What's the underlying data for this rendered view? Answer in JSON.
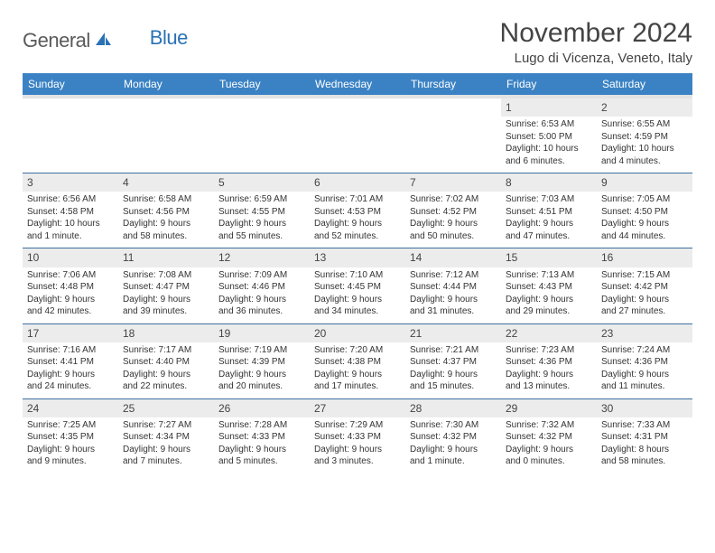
{
  "logo": {
    "word1": "General",
    "word2": "Blue"
  },
  "title": "November 2024",
  "location": "Lugo di Vicenza, Veneto, Italy",
  "colors": {
    "header_bg": "#3b82c4",
    "header_text": "#ffffff",
    "daynum_bg": "#ececec",
    "row_border": "#3b6fa0",
    "logo_gray": "#5a5a5a",
    "logo_blue": "#2a72b5",
    "page_bg": "#ffffff"
  },
  "weekdays": [
    "Sunday",
    "Monday",
    "Tuesday",
    "Wednesday",
    "Thursday",
    "Friday",
    "Saturday"
  ],
  "weeks": [
    [
      null,
      null,
      null,
      null,
      null,
      {
        "n": "1",
        "sr": "Sunrise: 6:53 AM",
        "ss": "Sunset: 5:00 PM",
        "d1": "Daylight: 10 hours",
        "d2": "and 6 minutes."
      },
      {
        "n": "2",
        "sr": "Sunrise: 6:55 AM",
        "ss": "Sunset: 4:59 PM",
        "d1": "Daylight: 10 hours",
        "d2": "and 4 minutes."
      }
    ],
    [
      {
        "n": "3",
        "sr": "Sunrise: 6:56 AM",
        "ss": "Sunset: 4:58 PM",
        "d1": "Daylight: 10 hours",
        "d2": "and 1 minute."
      },
      {
        "n": "4",
        "sr": "Sunrise: 6:58 AM",
        "ss": "Sunset: 4:56 PM",
        "d1": "Daylight: 9 hours",
        "d2": "and 58 minutes."
      },
      {
        "n": "5",
        "sr": "Sunrise: 6:59 AM",
        "ss": "Sunset: 4:55 PM",
        "d1": "Daylight: 9 hours",
        "d2": "and 55 minutes."
      },
      {
        "n": "6",
        "sr": "Sunrise: 7:01 AM",
        "ss": "Sunset: 4:53 PM",
        "d1": "Daylight: 9 hours",
        "d2": "and 52 minutes."
      },
      {
        "n": "7",
        "sr": "Sunrise: 7:02 AM",
        "ss": "Sunset: 4:52 PM",
        "d1": "Daylight: 9 hours",
        "d2": "and 50 minutes."
      },
      {
        "n": "8",
        "sr": "Sunrise: 7:03 AM",
        "ss": "Sunset: 4:51 PM",
        "d1": "Daylight: 9 hours",
        "d2": "and 47 minutes."
      },
      {
        "n": "9",
        "sr": "Sunrise: 7:05 AM",
        "ss": "Sunset: 4:50 PM",
        "d1": "Daylight: 9 hours",
        "d2": "and 44 minutes."
      }
    ],
    [
      {
        "n": "10",
        "sr": "Sunrise: 7:06 AM",
        "ss": "Sunset: 4:48 PM",
        "d1": "Daylight: 9 hours",
        "d2": "and 42 minutes."
      },
      {
        "n": "11",
        "sr": "Sunrise: 7:08 AM",
        "ss": "Sunset: 4:47 PM",
        "d1": "Daylight: 9 hours",
        "d2": "and 39 minutes."
      },
      {
        "n": "12",
        "sr": "Sunrise: 7:09 AM",
        "ss": "Sunset: 4:46 PM",
        "d1": "Daylight: 9 hours",
        "d2": "and 36 minutes."
      },
      {
        "n": "13",
        "sr": "Sunrise: 7:10 AM",
        "ss": "Sunset: 4:45 PM",
        "d1": "Daylight: 9 hours",
        "d2": "and 34 minutes."
      },
      {
        "n": "14",
        "sr": "Sunrise: 7:12 AM",
        "ss": "Sunset: 4:44 PM",
        "d1": "Daylight: 9 hours",
        "d2": "and 31 minutes."
      },
      {
        "n": "15",
        "sr": "Sunrise: 7:13 AM",
        "ss": "Sunset: 4:43 PM",
        "d1": "Daylight: 9 hours",
        "d2": "and 29 minutes."
      },
      {
        "n": "16",
        "sr": "Sunrise: 7:15 AM",
        "ss": "Sunset: 4:42 PM",
        "d1": "Daylight: 9 hours",
        "d2": "and 27 minutes."
      }
    ],
    [
      {
        "n": "17",
        "sr": "Sunrise: 7:16 AM",
        "ss": "Sunset: 4:41 PM",
        "d1": "Daylight: 9 hours",
        "d2": "and 24 minutes."
      },
      {
        "n": "18",
        "sr": "Sunrise: 7:17 AM",
        "ss": "Sunset: 4:40 PM",
        "d1": "Daylight: 9 hours",
        "d2": "and 22 minutes."
      },
      {
        "n": "19",
        "sr": "Sunrise: 7:19 AM",
        "ss": "Sunset: 4:39 PM",
        "d1": "Daylight: 9 hours",
        "d2": "and 20 minutes."
      },
      {
        "n": "20",
        "sr": "Sunrise: 7:20 AM",
        "ss": "Sunset: 4:38 PM",
        "d1": "Daylight: 9 hours",
        "d2": "and 17 minutes."
      },
      {
        "n": "21",
        "sr": "Sunrise: 7:21 AM",
        "ss": "Sunset: 4:37 PM",
        "d1": "Daylight: 9 hours",
        "d2": "and 15 minutes."
      },
      {
        "n": "22",
        "sr": "Sunrise: 7:23 AM",
        "ss": "Sunset: 4:36 PM",
        "d1": "Daylight: 9 hours",
        "d2": "and 13 minutes."
      },
      {
        "n": "23",
        "sr": "Sunrise: 7:24 AM",
        "ss": "Sunset: 4:36 PM",
        "d1": "Daylight: 9 hours",
        "d2": "and 11 minutes."
      }
    ],
    [
      {
        "n": "24",
        "sr": "Sunrise: 7:25 AM",
        "ss": "Sunset: 4:35 PM",
        "d1": "Daylight: 9 hours",
        "d2": "and 9 minutes."
      },
      {
        "n": "25",
        "sr": "Sunrise: 7:27 AM",
        "ss": "Sunset: 4:34 PM",
        "d1": "Daylight: 9 hours",
        "d2": "and 7 minutes."
      },
      {
        "n": "26",
        "sr": "Sunrise: 7:28 AM",
        "ss": "Sunset: 4:33 PM",
        "d1": "Daylight: 9 hours",
        "d2": "and 5 minutes."
      },
      {
        "n": "27",
        "sr": "Sunrise: 7:29 AM",
        "ss": "Sunset: 4:33 PM",
        "d1": "Daylight: 9 hours",
        "d2": "and 3 minutes."
      },
      {
        "n": "28",
        "sr": "Sunrise: 7:30 AM",
        "ss": "Sunset: 4:32 PM",
        "d1": "Daylight: 9 hours",
        "d2": "and 1 minute."
      },
      {
        "n": "29",
        "sr": "Sunrise: 7:32 AM",
        "ss": "Sunset: 4:32 PM",
        "d1": "Daylight: 9 hours",
        "d2": "and 0 minutes."
      },
      {
        "n": "30",
        "sr": "Sunrise: 7:33 AM",
        "ss": "Sunset: 4:31 PM",
        "d1": "Daylight: 8 hours",
        "d2": "and 58 minutes."
      }
    ]
  ]
}
